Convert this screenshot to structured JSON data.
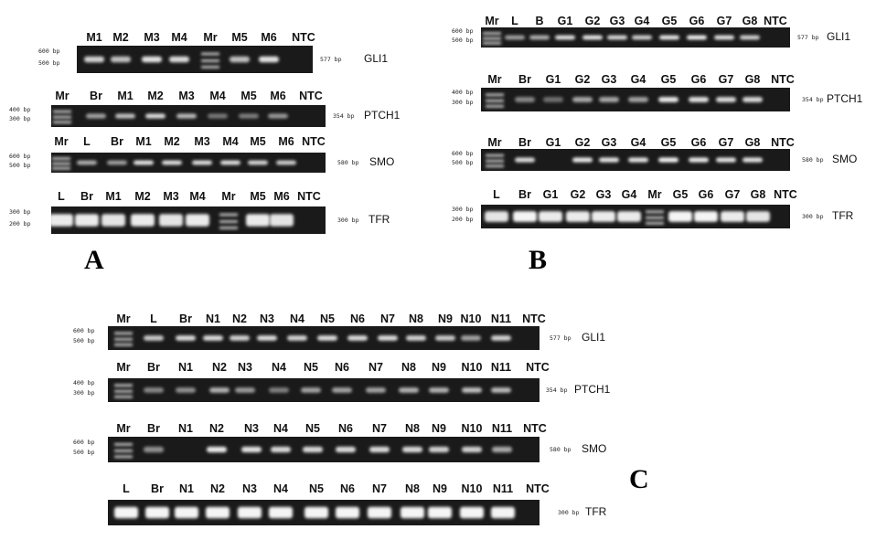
{
  "panels": {
    "A": {
      "letter": "A",
      "gels": [
        {
          "gene": "GLI1",
          "size": "577 bp",
          "markers": [
            "600 bp",
            "500 bp"
          ],
          "lanes": [
            "M1",
            "M2",
            "M3",
            "M4",
            "Mr",
            "M5",
            "M6",
            "NTC"
          ]
        },
        {
          "gene": "PTCH1",
          "size": "354 bp",
          "markers": [
            "400 bp",
            "300 bp"
          ],
          "lanes": [
            "Mr",
            "Br",
            "M1",
            "M2",
            "M3",
            "M4",
            "M5",
            "M6",
            "NTC"
          ]
        },
        {
          "gene": "SMO",
          "size": "580 bp",
          "markers": [
            "600 bp",
            "500 bp"
          ],
          "lanes": [
            "Mr",
            "L",
            "Br",
            "M1",
            "M2",
            "M3",
            "M4",
            "M5",
            "M6",
            "NTC"
          ]
        },
        {
          "gene": "TFR",
          "size": "300 bp",
          "markers": [
            "300 bp",
            "200 bp"
          ],
          "lanes": [
            "L",
            "Br",
            "M1",
            "M2",
            "M3",
            "M4",
            "Mr",
            "M5",
            "M6",
            "NTC"
          ]
        }
      ]
    },
    "B": {
      "letter": "B",
      "gels": [
        {
          "gene": "GLI1",
          "size": "577 bp",
          "markers": [
            "600 bp",
            "500 bp"
          ],
          "lanes": [
            "Mr",
            "L",
            "B",
            "G1",
            "G2",
            "G3",
            "G4",
            "G5",
            "G6",
            "G7",
            "G8",
            "NTC"
          ]
        },
        {
          "gene": "PTCH1",
          "size": "354 bp",
          "markers": [
            "400 bp",
            "300 bp"
          ],
          "lanes": [
            "Mr",
            "Br",
            "G1",
            "G2",
            "G3",
            "G4",
            "G5",
            "G6",
            "G7",
            "G8",
            "NTC"
          ]
        },
        {
          "gene": "SMO",
          "size": "580 bp",
          "markers": [
            "600 bp",
            "500 bp"
          ],
          "lanes": [
            "Mr",
            "Br",
            "G1",
            "G2",
            "G3",
            "G4",
            "G5",
            "G6",
            "G7",
            "G8",
            "NTC"
          ]
        },
        {
          "gene": "TFR",
          "size": "300 bp",
          "markers": [
            "300 bp",
            "200 bp"
          ],
          "lanes": [
            "L",
            "Br",
            "G1",
            "G2",
            "G3",
            "G4",
            "Mr",
            "G5",
            "G6",
            "G7",
            "G8",
            "NTC"
          ]
        }
      ]
    },
    "C": {
      "letter": "C",
      "gels": [
        {
          "gene": "GLI1",
          "size": "577 bp",
          "markers": [
            "600 bp",
            "500 bp"
          ],
          "lanes": [
            "Mr",
            "L",
            "Br",
            "N1",
            "N2",
            "N3",
            "N4",
            "N5",
            "N6",
            "N7",
            "N8",
            "N9",
            "N10",
            "N11",
            "NTC"
          ]
        },
        {
          "gene": "PTCH1",
          "size": "354 bp",
          "markers": [
            "400 bp",
            "300 bp"
          ],
          "lanes": [
            "Mr",
            "Br",
            "N1",
            "N2",
            "N3",
            "N4",
            "N5",
            "N6",
            "N7",
            "N8",
            "N9",
            "N10",
            "N11",
            "NTC"
          ]
        },
        {
          "gene": "SMO",
          "size": "580 bp",
          "markers": [
            "600 bp",
            "500 bp"
          ],
          "lanes": [
            "Mr",
            "Br",
            "N1",
            "N2",
            "N3",
            "N4",
            "N5",
            "N6",
            "N7",
            "N8",
            "N9",
            "N10",
            "N11",
            "NTC"
          ]
        },
        {
          "gene": "TFR",
          "size": "300 bp",
          "markers": [],
          "lanes": [
            "L",
            "Br",
            "N1",
            "N2",
            "N3",
            "N4",
            "N5",
            "N6",
            "N7",
            "N8",
            "N9",
            "N10",
            "N11",
            "NTC"
          ]
        }
      ]
    }
  },
  "colors": {
    "gel_bg": "#1a1a1a",
    "band": "#f4f4f4",
    "ladder": "#bdbdbd"
  }
}
